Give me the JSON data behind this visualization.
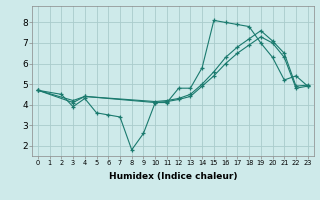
{
  "xlabel": "Humidex (Indice chaleur)",
  "bg_color": "#ceeaea",
  "grid_color": "#aacccc",
  "line_color": "#1a7a6e",
  "xlim": [
    -0.5,
    23.5
  ],
  "ylim": [
    1.5,
    8.8
  ],
  "xticks": [
    0,
    1,
    2,
    3,
    4,
    5,
    6,
    7,
    8,
    9,
    10,
    11,
    12,
    13,
    14,
    15,
    16,
    17,
    18,
    19,
    20,
    21,
    22,
    23
  ],
  "yticks": [
    2,
    3,
    4,
    5,
    6,
    7,
    8
  ],
  "line1_x": [
    0,
    2,
    3,
    4,
    5,
    6,
    7,
    8,
    9,
    10,
    11,
    12,
    13,
    14,
    15,
    16,
    17,
    18,
    19,
    20,
    21,
    22,
    23
  ],
  "line1_y": [
    4.7,
    4.5,
    3.9,
    4.3,
    3.6,
    3.5,
    3.4,
    1.8,
    2.6,
    4.1,
    4.1,
    4.8,
    4.8,
    5.8,
    8.1,
    8.0,
    7.9,
    7.8,
    7.0,
    6.3,
    5.2,
    5.4,
    4.9
  ],
  "line2_x": [
    0,
    3,
    4,
    10,
    11,
    12,
    13,
    14,
    15,
    16,
    17,
    18,
    19,
    20,
    21,
    22,
    23
  ],
  "line2_y": [
    4.7,
    4.2,
    4.4,
    4.15,
    4.2,
    4.3,
    4.5,
    5.0,
    5.6,
    6.3,
    6.8,
    7.2,
    7.6,
    7.1,
    6.5,
    4.9,
    4.95
  ],
  "line3_x": [
    0,
    3,
    4,
    10,
    11,
    12,
    13,
    14,
    15,
    16,
    17,
    18,
    19,
    20,
    21,
    22,
    23
  ],
  "line3_y": [
    4.7,
    4.1,
    4.4,
    4.1,
    4.15,
    4.25,
    4.4,
    4.9,
    5.4,
    6.0,
    6.5,
    6.9,
    7.3,
    7.0,
    6.3,
    4.8,
    4.9
  ]
}
